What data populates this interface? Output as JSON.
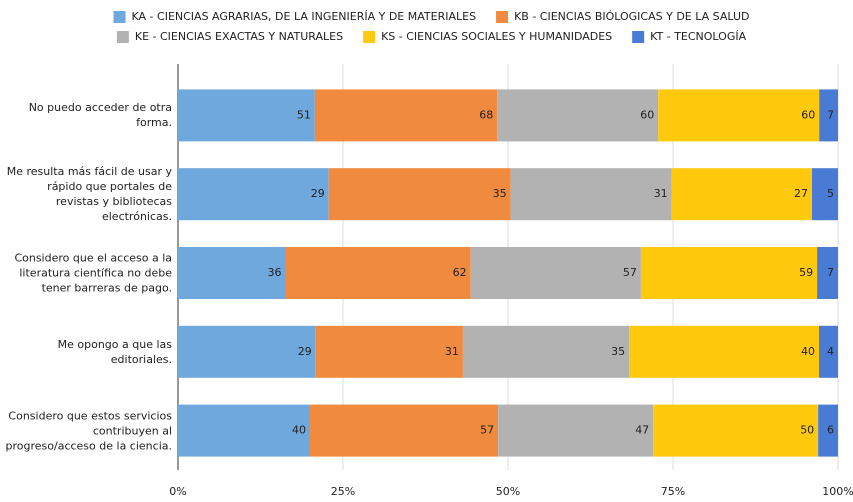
{
  "chart_data": {
    "type": "bar",
    "orientation": "horizontal",
    "stacking": "percent",
    "categories": [
      "No puedo acceder de otra forma.",
      "Me resulta más fácil de usar y rápido que portales de revistas y bibliotecas electrónicas.",
      "Considero que el acceso a la literatura científica no debe tener barreras de pago.",
      "Me opongo a que las editoriales.",
      "Considero que estos servicios contribuyen al progreso/acceso de la ciencia."
    ],
    "series": [
      {
        "name": "KA - CIENCIAS AGRARIAS, DE LA INGENIERÍA Y DE MATERIALES",
        "color": "#6fa8dc",
        "values": [
          51,
          29,
          36,
          29,
          40
        ]
      },
      {
        "name": "KB - CIENCIAS BIÓLOGICAS Y DE LA SALUD",
        "color": "#f08a3e",
        "values": [
          68,
          35,
          62,
          31,
          57
        ]
      },
      {
        "name": "KE - CIENCIAS EXACTAS Y NATURALES",
        "color": "#b2b2b2",
        "values": [
          60,
          31,
          57,
          35,
          47
        ]
      },
      {
        "name": "KS - CIENCIAS SOCIALES Y HUMANIDADES",
        "color": "#ffc90e",
        "values": [
          60,
          27,
          59,
          40,
          50
        ]
      },
      {
        "name": "KT - TECNOLOGÍA",
        "color": "#4a7bd4",
        "values": [
          7,
          5,
          7,
          4,
          6
        ]
      }
    ],
    "xlim": [
      0,
      100
    ],
    "xticks": [
      {
        "value": 0,
        "label": "0%"
      },
      {
        "value": 25,
        "label": "25%"
      },
      {
        "value": 50,
        "label": "50%"
      },
      {
        "value": 75,
        "label": "75%"
      },
      {
        "value": 100,
        "label": "100%"
      }
    ],
    "grid": true,
    "legend": "top"
  }
}
